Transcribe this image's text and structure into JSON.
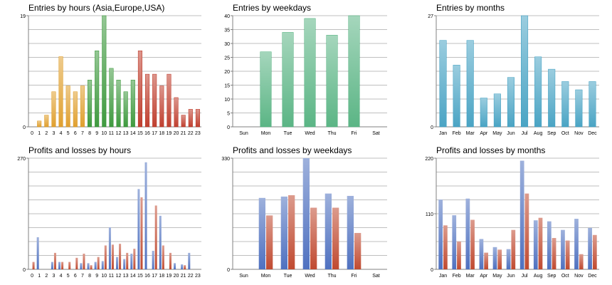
{
  "colors": {
    "grid": "#bfbfbf",
    "axis": "#808080",
    "text": "#000000",
    "asia": "#e0a030",
    "europe": "#3f9a3f",
    "usa": "#c04030",
    "weekday_bar": "#5bb585",
    "month_bar": "#4aa4c4",
    "profit": "#4f71c0",
    "loss": "#c04a30"
  },
  "chart_data": [
    {
      "id": "entries-hours",
      "type": "bar",
      "title": "Entries by hours (Asia,Europe,USA)",
      "categories": [
        "0",
        "1",
        "2",
        "3",
        "4",
        "5",
        "6",
        "7",
        "8",
        "9",
        "10",
        "11",
        "12",
        "13",
        "14",
        "15",
        "16",
        "17",
        "18",
        "19",
        "20",
        "21",
        "22",
        "23"
      ],
      "values": [
        0,
        1,
        2,
        6,
        12,
        7,
        6,
        7,
        8,
        13,
        19,
        10,
        8,
        6,
        8,
        13,
        9,
        9,
        7,
        9,
        5,
        2,
        3,
        3
      ],
      "segments": [
        "asia",
        "asia",
        "asia",
        "asia",
        "asia",
        "asia",
        "asia",
        "asia",
        "europe",
        "europe",
        "europe",
        "europe",
        "europe",
        "europe",
        "europe",
        "usa",
        "usa",
        "usa",
        "usa",
        "usa",
        "usa",
        "usa",
        "usa",
        "usa"
      ],
      "ylim": [
        0,
        19
      ],
      "yticks": [
        "0",
        "19"
      ]
    },
    {
      "id": "entries-weekdays",
      "type": "bar",
      "title": "Entries by weekdays",
      "categories": [
        "Sun",
        "Mon",
        "Tue",
        "Wed",
        "Thu",
        "Fri",
        "Sat"
      ],
      "values": [
        0,
        27,
        34,
        39,
        33,
        40,
        0
      ],
      "ylim": [
        0,
        40
      ],
      "yticks": [
        "0",
        "5",
        "10",
        "15",
        "20",
        "25",
        "30",
        "35",
        "40"
      ]
    },
    {
      "id": "entries-months",
      "type": "bar",
      "title": "Entries by months",
      "categories": [
        "Jan",
        "Feb",
        "Mar",
        "Apr",
        "May",
        "Jun",
        "Jul",
        "Aug",
        "Sep",
        "Oct",
        "Nov",
        "Dec"
      ],
      "values": [
        21,
        15,
        21,
        7,
        8,
        12,
        27,
        17,
        14,
        11,
        9,
        11
      ],
      "ylim": [
        0,
        27
      ],
      "yticks": [
        "0",
        "27"
      ]
    },
    {
      "id": "pl-hours",
      "type": "bar",
      "title": "Profits and losses by hours",
      "categories": [
        "0",
        "1",
        "2",
        "3",
        "4",
        "5",
        "6",
        "7",
        "8",
        "9",
        "10",
        "11",
        "12",
        "13",
        "14",
        "15",
        "16",
        "17",
        "18",
        "19",
        "20",
        "21",
        "22",
        "23"
      ],
      "series": [
        {
          "key": "profit",
          "values": [
            0,
            78,
            0,
            18,
            18,
            0,
            0,
            15,
            15,
            18,
            20,
            102,
            30,
            25,
            38,
            195,
            260,
            45,
            130,
            0,
            15,
            12,
            40,
            0
          ]
        },
        {
          "key": "loss",
          "values": [
            18,
            0,
            0,
            40,
            18,
            18,
            28,
            38,
            10,
            30,
            58,
            60,
            62,
            40,
            50,
            175,
            0,
            155,
            58,
            40,
            0,
            10,
            0,
            0
          ]
        }
      ],
      "ylim": [
        0,
        270
      ],
      "yticks": [
        "0",
        "270"
      ]
    },
    {
      "id": "pl-weekdays",
      "type": "bar",
      "title": "Profits and losses by weekdays",
      "categories": [
        "Sun",
        "Mon",
        "Tue",
        "Wed",
        "Thu",
        "Fri",
        "Sat"
      ],
      "series": [
        {
          "key": "profit",
          "values": [
            0,
            212,
            216,
            330,
            225,
            218,
            0
          ]
        },
        {
          "key": "loss",
          "values": [
            0,
            160,
            220,
            183,
            183,
            108,
            0
          ]
        }
      ],
      "ylim": [
        0,
        330
      ],
      "yticks": [
        "0",
        "330"
      ]
    },
    {
      "id": "pl-months",
      "type": "bar",
      "title": "Profits and losses by months",
      "categories": [
        "Jan",
        "Feb",
        "Mar",
        "Apr",
        "May",
        "Jun",
        "Jul",
        "Aug",
        "Sep",
        "Oct",
        "Nov",
        "Dec"
      ],
      "series": [
        {
          "key": "profit",
          "values": [
            138,
            107,
            140,
            60,
            44,
            40,
            215,
            97,
            95,
            78,
            100,
            82
          ]
        },
        {
          "key": "loss",
          "values": [
            87,
            55,
            98,
            33,
            39,
            78,
            150,
            102,
            62,
            57,
            30,
            68
          ]
        }
      ],
      "ylim": [
        0,
        220
      ],
      "yticks": [
        "0",
        "110",
        "220"
      ]
    }
  ]
}
